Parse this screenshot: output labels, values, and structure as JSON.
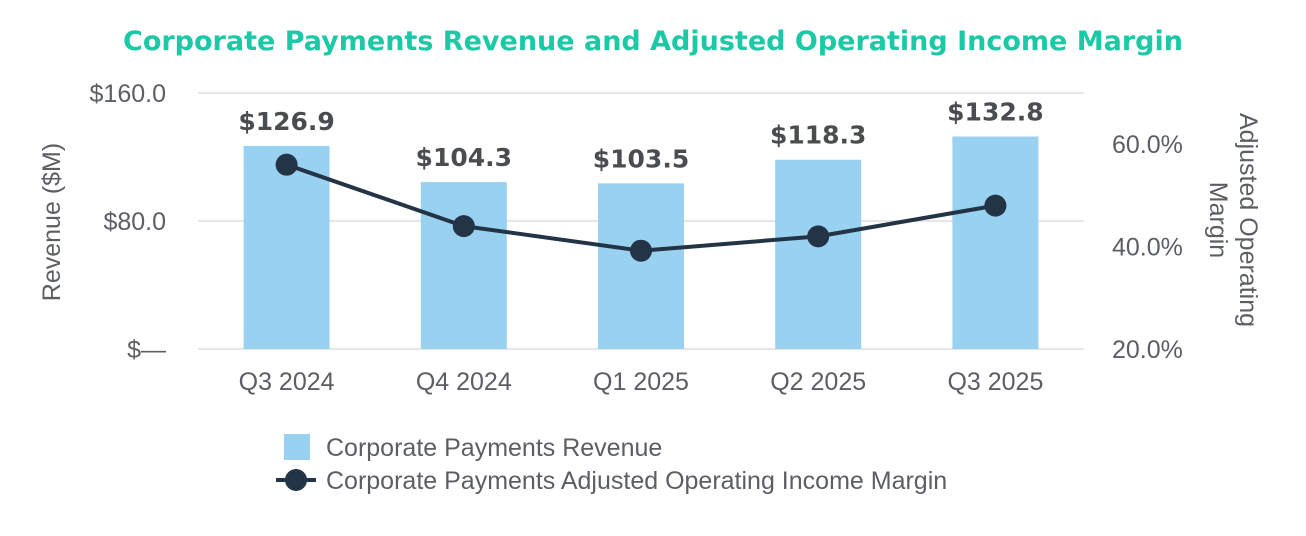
{
  "chart_data": {
    "type": "bar+line",
    "title": "Corporate Payments Revenue and Adjusted Operating Income Margin",
    "categories": [
      "Q3 2024",
      "Q4 2024",
      "Q1 2025",
      "Q2 2025",
      "Q3 2025"
    ],
    "series": [
      {
        "name": "Corporate Payments Revenue",
        "type": "bar",
        "axis": "left",
        "values": [
          126.9,
          104.3,
          103.5,
          118.3,
          132.8
        ],
        "labels": [
          "$126.9",
          "$104.3",
          "$103.5",
          "$118.3",
          "$132.8"
        ],
        "color": "#99d1f0"
      },
      {
        "name": "Corporate Payments Adjusted Operating Income Margin",
        "type": "line",
        "axis": "right",
        "values": [
          56.0,
          44.0,
          39.2,
          42.0,
          48.0
        ],
        "color": "#243447"
      }
    ],
    "ylabel": "Revenue ($M)",
    "y2label": "Adjusted Operating Margin",
    "ylim": [
      0,
      160
    ],
    "yticks": [
      0,
      80,
      160
    ],
    "ytick_labels": [
      "$—",
      "$80.0",
      "$160.0"
    ],
    "y2lim": [
      20,
      70
    ],
    "y2ticks": [
      20,
      40,
      60
    ],
    "y2tick_labels": [
      "20.0%",
      "40.0%",
      "60.0%"
    ],
    "grid": true,
    "legend_position": "bottom",
    "colors": {
      "title": "#1cc9a6",
      "grid": "#e6e6e6",
      "text": "#5b5f63"
    }
  }
}
